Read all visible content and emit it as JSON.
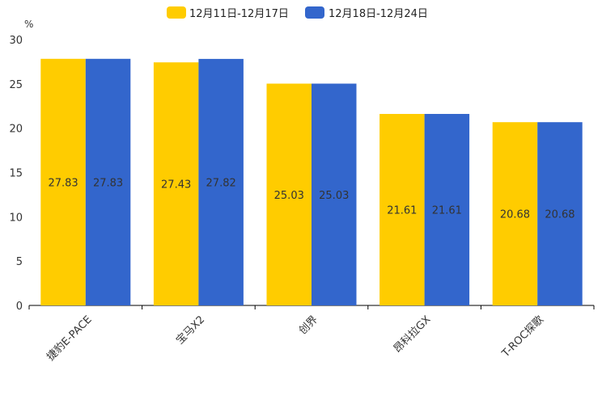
{
  "chart_data": {
    "type": "bar",
    "title": "",
    "xlabel": "",
    "ylabel": "%",
    "ylim": [
      0,
      30
    ],
    "yticks": [
      0,
      5,
      10,
      15,
      20,
      25,
      30
    ],
    "categories": [
      "捷豹E-PACE",
      "宝马X2",
      "创界",
      "昂科拉GX",
      "T-ROC探歌"
    ],
    "series": [
      {
        "name": "12月11日-12月17日",
        "color": "#FFCC00",
        "values": [
          27.83,
          27.43,
          25.03,
          21.61,
          20.68
        ]
      },
      {
        "name": "12月18日-12月24日",
        "color": "#3366CC",
        "values": [
          27.83,
          27.82,
          25.03,
          21.61,
          20.68
        ]
      }
    ],
    "legend_position": "top-center",
    "grid": false
  }
}
